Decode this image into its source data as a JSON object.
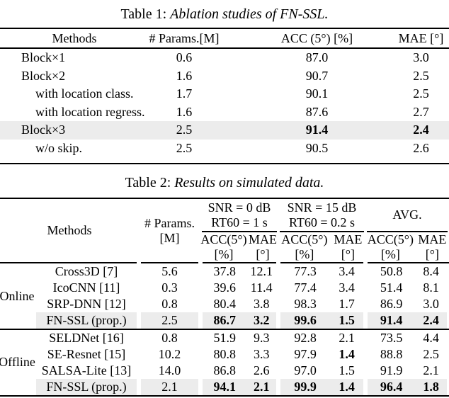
{
  "colors": {
    "highlight": "#ececec",
    "rule": "#000000"
  },
  "table1": {
    "caption_prefix": "Table 1: ",
    "caption_italic": "Ablation studies of FN-SSL.",
    "headers": [
      "Methods",
      "# Params.[M]",
      "ACC (5°) [%]",
      "MAE [°]"
    ],
    "rows": [
      {
        "method": "Block×1",
        "indent": false,
        "highlight": false,
        "params": "0.6",
        "acc": "87.0",
        "mae": "3.0",
        "acc_bold": false,
        "mae_bold": false
      },
      {
        "method": "Block×2",
        "indent": false,
        "highlight": false,
        "params": "1.6",
        "acc": "90.7",
        "mae": "2.5",
        "acc_bold": false,
        "mae_bold": false
      },
      {
        "method": "with location class.",
        "indent": true,
        "highlight": false,
        "params": "1.7",
        "acc": "90.1",
        "mae": "2.5",
        "acc_bold": false,
        "mae_bold": false
      },
      {
        "method": "with location regress.",
        "indent": true,
        "highlight": false,
        "params": "1.6",
        "acc": "87.6",
        "mae": "2.7",
        "acc_bold": false,
        "mae_bold": false
      },
      {
        "method": "Block×3",
        "indent": false,
        "highlight": true,
        "params": "2.5",
        "acc": "91.4",
        "mae": "2.4",
        "acc_bold": true,
        "mae_bold": true
      },
      {
        "method": "w/o skip.",
        "indent": true,
        "highlight": false,
        "params": "2.5",
        "acc": "90.5",
        "mae": "2.6",
        "acc_bold": false,
        "mae_bold": false
      }
    ]
  },
  "table2": {
    "caption_prefix": "Table 2: ",
    "caption_italic": "Results on simulated data.",
    "header": {
      "methods": "Methods",
      "params_line1": "# Params.",
      "params_line2": "[M]",
      "groups": [
        {
          "line1": "SNR = 0 dB",
          "line2": "RT60 = 1 s"
        },
        {
          "line1": "SNR = 15 dB",
          "line2": "RT60 = 0.2 s"
        },
        {
          "line1": "AVG.",
          "line2": ""
        }
      ],
      "acc_label": "ACC(5°)",
      "mae_label": "MAE",
      "acc_unit": "[%]",
      "mae_unit": "[°]"
    },
    "sections": [
      {
        "label": "Online",
        "rows": [
          {
            "method": "Cross3D [7]",
            "params": "5.6",
            "highlight": false,
            "values": [
              "37.8",
              "12.1",
              "77.3",
              "3.4",
              "50.8",
              "8.4"
            ],
            "bold": [
              false,
              false,
              false,
              false,
              false,
              false
            ]
          },
          {
            "method": "IcoCNN [11]",
            "params": "0.3",
            "highlight": false,
            "values": [
              "39.6",
              "11.4",
              "77.4",
              "3.4",
              "51.4",
              "8.1"
            ],
            "bold": [
              false,
              false,
              false,
              false,
              false,
              false
            ]
          },
          {
            "method": "SRP-DNN [12]",
            "params": "0.8",
            "highlight": false,
            "values": [
              "80.4",
              "3.8",
              "98.3",
              "1.7",
              "86.9",
              "3.0"
            ],
            "bold": [
              false,
              false,
              false,
              false,
              false,
              false
            ]
          },
          {
            "method": "FN-SSL (prop.)",
            "params": "2.5",
            "highlight": true,
            "values": [
              "86.7",
              "3.2",
              "99.6",
              "1.5",
              "91.4",
              "2.4"
            ],
            "bold": [
              true,
              true,
              true,
              true,
              true,
              true
            ]
          }
        ]
      },
      {
        "label": "Offline",
        "rows": [
          {
            "method": "SELDNet [16]",
            "params": "0.8",
            "highlight": false,
            "values": [
              "51.9",
              "9.3",
              "92.8",
              "2.1",
              "73.5",
              "4.4"
            ],
            "bold": [
              false,
              false,
              false,
              false,
              false,
              false
            ]
          },
          {
            "method": "SE-Resnet [15]",
            "params": "10.2",
            "highlight": false,
            "values": [
              "80.8",
              "3.3",
              "97.9",
              "1.4",
              "88.8",
              "2.5"
            ],
            "bold": [
              false,
              false,
              false,
              true,
              false,
              false
            ]
          },
          {
            "method": "SALSA-Lite [13]",
            "params": "14.0",
            "highlight": false,
            "values": [
              "86.8",
              "2.6",
              "97.0",
              "1.5",
              "91.9",
              "2.1"
            ],
            "bold": [
              false,
              false,
              false,
              false,
              false,
              false
            ]
          },
          {
            "method": "FN-SSL (prop.)",
            "params": "2.1",
            "highlight": true,
            "values": [
              "94.1",
              "2.1",
              "99.9",
              "1.4",
              "96.4",
              "1.8"
            ],
            "bold": [
              true,
              true,
              true,
              true,
              true,
              true
            ]
          }
        ]
      }
    ]
  }
}
